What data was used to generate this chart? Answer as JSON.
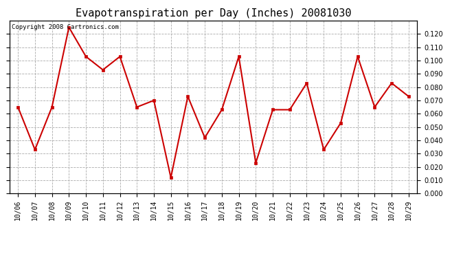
{
  "title": "Evapotranspiration per Day (Inches) 20081030",
  "copyright_text": "Copyright 2008 Cartronics.com",
  "x_labels": [
    "10/06",
    "10/07",
    "10/08",
    "10/09",
    "10/10",
    "10/11",
    "10/12",
    "10/13",
    "10/14",
    "10/15",
    "10/16",
    "10/17",
    "10/18",
    "10/19",
    "10/20",
    "10/21",
    "10/22",
    "10/23",
    "10/24",
    "10/25",
    "10/26",
    "10/27",
    "10/28",
    "10/29"
  ],
  "y_values": [
    0.065,
    0.033,
    0.065,
    0.125,
    0.103,
    0.093,
    0.103,
    0.065,
    0.07,
    0.012,
    0.073,
    0.042,
    0.063,
    0.103,
    0.023,
    0.063,
    0.063,
    0.083,
    0.033,
    0.053,
    0.103,
    0.065,
    0.083,
    0.073
  ],
  "line_color": "#cc0000",
  "marker": "s",
  "marker_size": 3,
  "marker_color": "#cc0000",
  "ylim": [
    0.0,
    0.13
  ],
  "yticks": [
    0.0,
    0.01,
    0.02,
    0.03,
    0.04,
    0.05,
    0.06,
    0.07,
    0.08,
    0.09,
    0.1,
    0.11,
    0.12
  ],
  "background_color": "#ffffff",
  "plot_bg_color": "#ffffff",
  "grid_color": "#aaaaaa",
  "title_fontsize": 11,
  "copyright_fontsize": 6.5,
  "tick_fontsize": 7,
  "line_width": 1.5
}
